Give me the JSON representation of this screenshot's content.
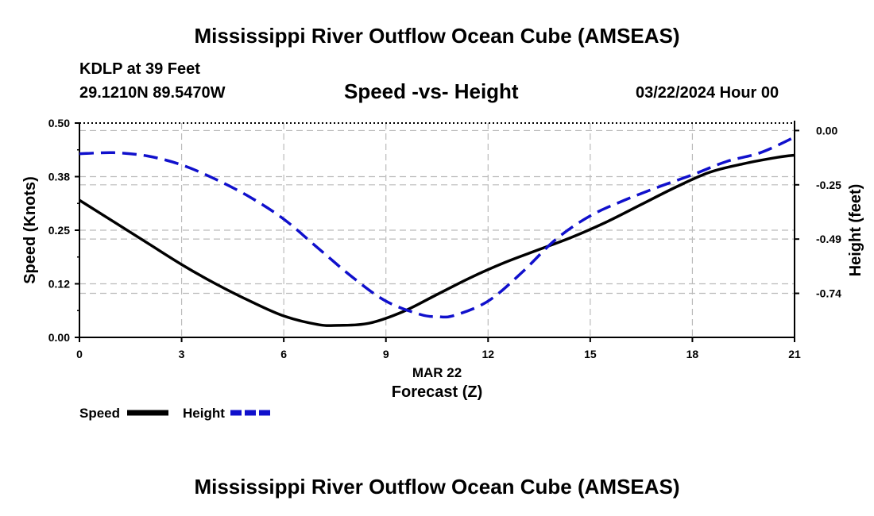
{
  "header": {
    "title": "Mississippi River Outflow Ocean Cube (AMSEAS)",
    "station": "KDLP at 39 Feet",
    "coords": "29.1210N  89.5470W",
    "subtitle": "Speed -vs- Height",
    "datetime": "03/22/2024 Hour 00"
  },
  "footer": {
    "title": "Mississippi River Outflow Ocean Cube (AMSEAS)"
  },
  "colors": {
    "speed": "#000000",
    "height": "#1010cc",
    "grid": "#bbbbbb"
  },
  "chart_data": {
    "type": "line",
    "title": "Speed -vs- Height",
    "xlabel": "Forecast (Z)",
    "xlabel_date": "MAR 22",
    "ylabel": "Speed (Knots)",
    "y2label": "Height (feet)",
    "xlim": [
      0,
      21
    ],
    "ylim": [
      0,
      0.5
    ],
    "y2lim": [
      -0.9338,
      0.0338
    ],
    "x_ticks": [
      0,
      3,
      6,
      9,
      12,
      15,
      18,
      21
    ],
    "x_tick_labels": [
      "0",
      "3",
      "6",
      "9",
      "12",
      "15",
      "18",
      "21"
    ],
    "y_ticks": [
      0,
      0.125,
      0.25,
      0.375,
      0.5
    ],
    "y_tick_labels": [
      "0.00",
      "0.12",
      "0.25",
      "0.38",
      "0.50"
    ],
    "y2_ticks": [
      0,
      -0.245,
      -0.49,
      -0.735
    ],
    "y2_tick_labels": [
      "0.00",
      "-0.25",
      "-0.49",
      "-0.74"
    ],
    "grid": true,
    "series": [
      {
        "name": "Speed",
        "axis": "left",
        "style": "solid",
        "x": [
          0,
          1,
          2,
          3,
          4,
          5,
          6,
          7,
          7.6,
          8.5,
          9.5,
          10.5,
          11.5,
          12.5,
          13.5,
          14.5,
          15.5,
          16.5,
          17.5,
          18.5,
          19.5,
          20.5,
          21
        ],
        "values": [
          0.32,
          0.27,
          0.22,
          0.17,
          0.125,
          0.085,
          0.05,
          0.03,
          0.028,
          0.033,
          0.06,
          0.1,
          0.14,
          0.175,
          0.205,
          0.235,
          0.27,
          0.31,
          0.35,
          0.385,
          0.405,
          0.42,
          0.425
        ]
      },
      {
        "name": "Height",
        "axis": "right",
        "style": "dashed",
        "x": [
          0,
          1,
          2,
          3,
          4,
          5,
          6,
          7,
          8,
          9,
          10,
          10.5,
          11,
          12,
          13,
          14,
          15,
          16,
          17,
          18,
          19,
          20,
          21
        ],
        "values": [
          -0.105,
          -0.1,
          -0.115,
          -0.155,
          -0.22,
          -0.3,
          -0.4,
          -0.53,
          -0.66,
          -0.77,
          -0.83,
          -0.84,
          -0.835,
          -0.77,
          -0.64,
          -0.49,
          -0.385,
          -0.315,
          -0.255,
          -0.2,
          -0.14,
          -0.1,
          -0.03
        ]
      }
    ]
  }
}
